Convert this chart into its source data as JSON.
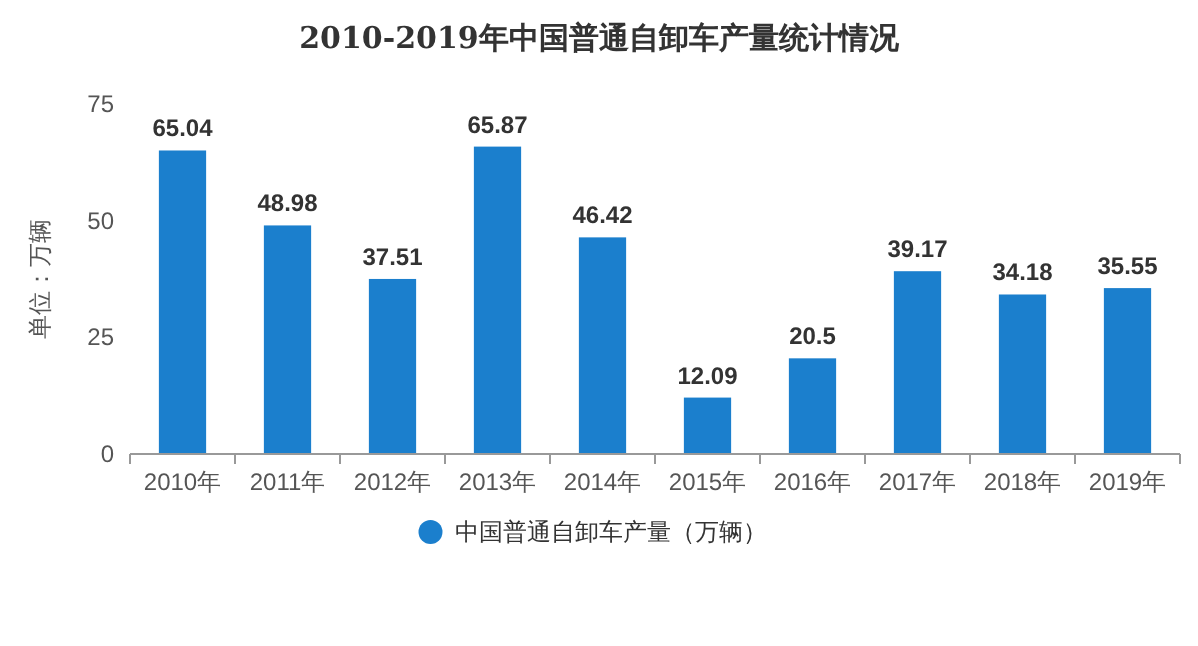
{
  "chart_data": {
    "type": "bar",
    "title": "2010-2019年中国普通自卸车产量统计情况",
    "categories": [
      "2010年",
      "2011年",
      "2012年",
      "2013年",
      "2014年",
      "2015年",
      "2016年",
      "2017年",
      "2018年",
      "2019年"
    ],
    "series": [
      {
        "name": "中国普通自卸车产量（万辆）",
        "color": "#1b7fcd",
        "values": [
          65.04,
          48.98,
          37.51,
          65.87,
          46.42,
          12.09,
          20.5,
          39.17,
          34.18,
          35.55
        ]
      }
    ],
    "ylabel": "单位：万辆",
    "ylim": [
      0,
      75
    ],
    "yticks": [
      0,
      25,
      50,
      75
    ],
    "data_labels": true,
    "legend": "bottom"
  }
}
